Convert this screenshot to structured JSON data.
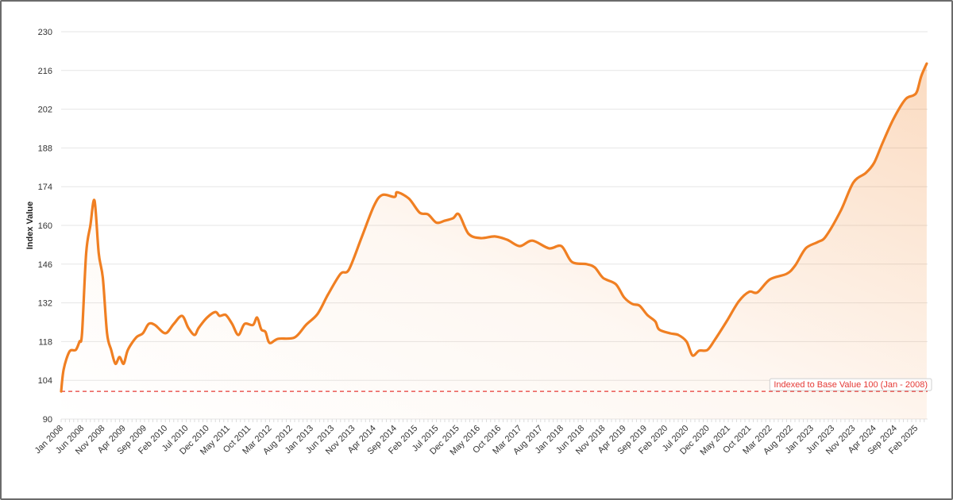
{
  "chart_data": {
    "type": "area",
    "title": "",
    "xlabel": "",
    "ylabel": "Index Value",
    "ylim": [
      90,
      230
    ],
    "yticks": [
      90,
      104,
      118,
      132,
      146,
      160,
      174,
      188,
      202,
      216,
      230
    ],
    "grid": true,
    "x_units": "months since Jan 2008",
    "xtick_labels": [
      "Jan 2008",
      "Jun 2008",
      "Nov 2008",
      "Apr 2009",
      "Sep 2009",
      "Feb 2010",
      "Jul 2010",
      "Dec 2010",
      "May 2011",
      "Oct 2011",
      "Mar 2012",
      "Aug 2012",
      "Jan 2013",
      "Jun 2013",
      "Nov 2013",
      "Apr 2014",
      "Sep 2014",
      "Feb 2015",
      "Jul 2015",
      "Dec 2015",
      "May 2016",
      "Oct 2016",
      "Mar 2017",
      "Aug 2017",
      "Jan 2018",
      "Jun 2018",
      "Nov 2018",
      "Apr 2019",
      "Sep 2019",
      "Feb 2020",
      "Jul 2020",
      "Dec 2020",
      "May 2021",
      "Oct 2021",
      "Mar 2022",
      "Aug 2022",
      "Jan 2023",
      "Jun 2023",
      "Nov 2023",
      "Apr 2024",
      "Sep 2024",
      "Feb 2025"
    ],
    "xtick_step_months": 5,
    "series": [
      {
        "name": "Index Value",
        "color": "#f07f22",
        "x": [
          0,
          0.6,
          2,
          3.5,
          4.4,
          5,
          6,
          7,
          8,
          9,
          10,
          11,
          12,
          13,
          14,
          15,
          16,
          18,
          19.6,
          21,
          22.5,
          25,
          27,
          29,
          30.5,
          32,
          33,
          35,
          37,
          38,
          39.5,
          41,
          42.5,
          44,
          46,
          47,
          48,
          49,
          50,
          52,
          56,
          58.7,
          61.5,
          64,
          67,
          69,
          72,
          75,
          77,
          80,
          80.6,
          83.4,
          86,
          88,
          90,
          92,
          94,
          95.4,
          97.7,
          100.6,
          104,
          107,
          110,
          113,
          117,
          120,
          122.5,
          126,
          128,
          130,
          133,
          135,
          137,
          138.7,
          140.6,
          142.5,
          143.4,
          146,
          148,
          150,
          151.4,
          153,
          155,
          156.8,
          159.6,
          162.5,
          165,
          167,
          170,
          174,
          176,
          178.6,
          181.5,
          183.4,
          187,
          190,
          193,
          195,
          197,
          199.6,
          202.5,
          204.4,
          205.3,
          206.3,
          207.6
        ],
        "values": [
          100,
          108,
          114.4,
          115,
          118,
          121,
          150,
          160,
          169,
          150,
          141,
          121,
          115,
          110,
          112.4,
          110,
          115,
          119.5,
          121,
          124.4,
          124,
          121,
          124.4,
          127.3,
          123,
          120.4,
          123,
          126.7,
          128.7,
          127.3,
          127.6,
          124.4,
          120.4,
          124.4,
          124,
          126.7,
          122.4,
          121.5,
          117.5,
          119,
          119.5,
          124,
          128,
          135,
          142.5,
          144,
          155.4,
          167,
          171,
          170.3,
          172,
          169.7,
          164.6,
          164,
          161,
          161.7,
          162.6,
          164,
          157,
          155.4,
          156,
          154.8,
          152.5,
          154.5,
          151.7,
          152.5,
          146.8,
          146,
          144.8,
          141,
          138.8,
          134,
          131.6,
          131,
          127.6,
          125.3,
          122.4,
          121,
          120.4,
          118,
          113,
          114.7,
          115,
          118.7,
          125.3,
          132.5,
          136,
          135.8,
          140.5,
          142.5,
          145.4,
          151.7,
          154,
          156,
          165.4,
          175.5,
          179,
          182.7,
          189.8,
          198.4,
          205.6,
          207,
          208.5,
          214,
          218.5
        ]
      }
    ],
    "reference_line": {
      "value": 100,
      "color": "#e53935",
      "style": "dashed",
      "label": "Indexed to Base Value 100 (Jan - 2008)",
      "label_position": "right"
    },
    "legend": "none"
  }
}
